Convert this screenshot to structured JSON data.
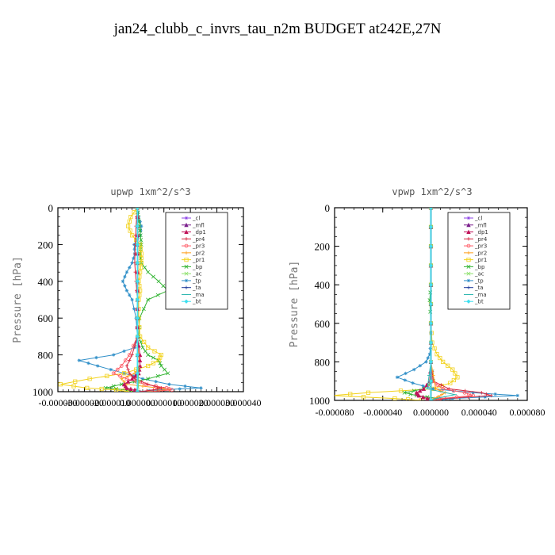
{
  "title": "jan24_clubb_c_invrs_tau_n2m  BUDGET at242E,27N",
  "legend_entries": [
    {
      "name": "_cl",
      "color": "#8e44e6"
    },
    {
      "name": "_mfl",
      "color": "#7a1e8c"
    },
    {
      "name": "_dp1",
      "color": "#c0145a"
    },
    {
      "name": "_pr4",
      "color": "#d4243c"
    },
    {
      "name": "_pr3",
      "color": "#ff5a64"
    },
    {
      "name": "_pr2",
      "color": "#ff9f1c"
    },
    {
      "name": "_pr1",
      "color": "#f2d21b"
    },
    {
      "name": "_bp",
      "color": "#2fb32f"
    },
    {
      "name": "_ac",
      "color": "#8ce06a"
    },
    {
      "name": "_tp",
      "color": "#2f8fc8"
    },
    {
      "name": "_ta",
      "color": "#1f3a9a"
    },
    {
      "name": "_ma",
      "color": "#2fb8b0"
    },
    {
      "name": "_bt",
      "color": "#3fe0f0"
    }
  ],
  "chart_data": [
    {
      "type": "line",
      "title": "upwp   1xm^2/s^3",
      "ylabel": "Pressure [hPa]",
      "xlim": [
        -3e-05,
        4e-05
      ],
      "ylim": [
        1000,
        0
      ],
      "yticks": [
        0,
        200,
        400,
        600,
        800,
        1000
      ],
      "ytick_labels": [
        "0",
        "200",
        "400",
        "600",
        "800",
        "1000"
      ],
      "xticks": [
        -3e-05,
        -2e-05,
        -1e-05,
        0,
        1e-05,
        2e-05,
        3e-05,
        4e-05
      ],
      "xtick_labels": [
        "-0.000030",
        "-0.000020",
        "-0.000010",
        "0.000000",
        "0.000010",
        "0.000020",
        "0.000030",
        "0.000040"
      ],
      "legend_position": "top-right",
      "series": [
        {
          "name": "_tp",
          "y": [
            0,
            50,
            100,
            150,
            200,
            250,
            300,
            350,
            400,
            450,
            500,
            600,
            700,
            760,
            800,
            830,
            860,
            900,
            930,
            960,
            980,
            990,
            1000
          ],
          "x": [
            0,
            5e-07,
            1.5e-06,
            1e-06,
            -1.2e-06,
            -1e-06,
            -2e-06,
            -4e-06,
            -5.5e-06,
            -4e-06,
            -2e-06,
            -5e-07,
            0,
            -1e-06,
            -9e-06,
            -2.2e-05,
            -1.5e-05,
            -5e-06,
            2e-06,
            1.2e-05,
            2.4e-05,
            8e-06,
            1e-06
          ]
        },
        {
          "name": "_bp",
          "y": [
            0,
            50,
            100,
            150,
            200,
            250,
            300,
            350,
            400,
            450,
            500,
            600,
            700,
            760,
            800,
            830,
            860,
            900,
            930,
            960,
            980,
            990,
            1000
          ],
          "x": [
            0,
            4e-07,
            8e-07,
            1.2e-06,
            1.5e-06,
            1e-06,
            1.5e-06,
            4e-06,
            8e-06,
            1.15e-05,
            4e-06,
            8e-07,
            5e-07,
            2e-06,
            4e-06,
            8e-06,
            9e-06,
            1.15e-05,
            4e-06,
            -6e-06,
            -1.2e-05,
            -4e-06,
            -1.5e-06
          ]
        },
        {
          "name": "_pr1",
          "y": [
            0,
            50,
            100,
            150,
            200,
            250,
            300,
            350,
            400,
            450,
            500,
            600,
            700,
            760,
            800,
            830,
            860,
            900,
            930,
            960,
            980,
            990,
            1000
          ],
          "x": [
            0,
            -2.5e-06,
            -3.5e-06,
            -2e-06,
            1e-06,
            1.5e-06,
            1.5e-06,
            1e-06,
            5e-07,
            1e-06,
            5e-07,
            5e-07,
            1e-06,
            4e-06,
            9e-06,
            8e-06,
            4e-06,
            -5e-06,
            -1.8e-05,
            -2.9e-05,
            -1.9e-05,
            -8e-06,
            -3e-06
          ]
        },
        {
          "name": "_pr2",
          "y": [
            0,
            100,
            200,
            300,
            400,
            500,
            600,
            700,
            800,
            860,
            900,
            930,
            960,
            980,
            990,
            1000
          ],
          "x": [
            0,
            0,
            0,
            0,
            0,
            0,
            0,
            0,
            5e-07,
            1e-06,
            -1e-06,
            -6e-06,
            -4e-06,
            8e-06,
            1.2e-05,
            4e-06
          ]
        },
        {
          "name": "_pr3",
          "y": [
            0,
            100,
            200,
            300,
            400,
            500,
            600,
            700,
            800,
            860,
            900,
            930,
            960,
            980,
            990,
            1000
          ],
          "x": [
            0,
            0,
            0,
            0,
            0,
            0,
            0,
            0,
            -3e-06,
            -6e-06,
            -9e-06,
            -4e-06,
            3e-06,
            1.1e-05,
            1.3e-05,
            5e-06
          ]
        },
        {
          "name": "_pr4",
          "y": [
            0,
            100,
            200,
            300,
            400,
            500,
            600,
            700,
            800,
            860,
            900,
            930,
            960,
            980,
            990,
            1000
          ],
          "x": [
            0,
            -5e-07,
            -8e-07,
            -1e-06,
            -5e-07,
            0,
            0,
            0,
            -2e-06,
            -4e-06,
            -3e-06,
            -1e-06,
            4e-06,
            9e-06,
            6e-06,
            1e-06
          ]
        },
        {
          "name": "_dp1",
          "y": [
            0,
            100,
            200,
            300,
            400,
            500,
            600,
            700,
            800,
            860,
            900,
            930,
            960,
            980,
            990,
            1000
          ],
          "x": [
            0,
            0,
            0,
            0,
            0,
            0,
            0,
            0,
            1e-06,
            1e-06,
            5e-07,
            -2e-06,
            -5e-06,
            -4e-06,
            -1e-06,
            0
          ]
        },
        {
          "name": "_cl",
          "y": [
            0,
            200,
            400,
            600,
            800,
            1000
          ],
          "x": [
            0,
            0,
            0,
            0,
            0,
            0
          ]
        },
        {
          "name": "_mfl",
          "y": [
            0,
            200,
            400,
            600,
            800,
            1000
          ],
          "x": [
            0,
            0,
            0,
            0,
            0,
            0
          ]
        },
        {
          "name": "_ac",
          "y": [
            0,
            200,
            400,
            600,
            800,
            950,
            1000
          ],
          "x": [
            0,
            0,
            0,
            0,
            0,
            5e-07,
            0
          ]
        },
        {
          "name": "_ta",
          "y": [
            0,
            200,
            400,
            600,
            800,
            1000
          ],
          "x": [
            0,
            0,
            0,
            0,
            0,
            0
          ]
        },
        {
          "name": "_ma",
          "y": [
            0,
            200,
            400,
            600,
            800,
            1000
          ],
          "x": [
            0,
            0,
            0,
            0,
            0,
            0
          ]
        },
        {
          "name": "_bt",
          "y": [
            0,
            200,
            400,
            600,
            800,
            1000
          ],
          "x": [
            0,
            0,
            0,
            0,
            0,
            0
          ]
        }
      ]
    },
    {
      "type": "line",
      "title": "vpwp   1xm^2/s^3",
      "ylabel": "Pressure [hPa]",
      "xlim": [
        -8e-05,
        8e-05
      ],
      "ylim": [
        1000,
        0
      ],
      "yticks": [
        0,
        200,
        400,
        600,
        800,
        1000
      ],
      "ytick_labels": [
        "0",
        "200",
        "400",
        "600",
        "800",
        "1000"
      ],
      "xticks": [
        -8e-05,
        -4e-05,
        0,
        4e-05,
        8e-05
      ],
      "xtick_labels": [
        "-0.000080",
        "-0.000040",
        "0.000000",
        "0.000040",
        "0.000080"
      ],
      "legend_position": "top-right",
      "series": [
        {
          "name": "_pr1",
          "y": [
            0,
            200,
            400,
            600,
            700,
            760,
            800,
            840,
            880,
            910,
            940,
            960,
            975,
            990,
            1000
          ],
          "x": [
            0,
            0,
            0,
            0,
            1e-06,
            5e-06,
            1e-05,
            1.8e-05,
            2.2e-05,
            1.6e-05,
            2e-06,
            -5.2e-05,
            -8.2e-05,
            -3e-05,
            -8e-06
          ]
        },
        {
          "name": "_tp",
          "y": [
            0,
            200,
            400,
            600,
            700,
            760,
            800,
            840,
            880,
            910,
            940,
            960,
            975,
            990,
            1000
          ],
          "x": [
            0,
            0,
            0,
            0,
            0,
            -1e-06,
            -4e-06,
            -1.4e-05,
            -2.8e-05,
            -1.5e-05,
            2e-06,
            3.5e-05,
            7.2e-05,
            1.8e-05,
            4e-06
          ]
        },
        {
          "name": "_bp",
          "y": [
            0,
            200,
            400,
            480,
            600,
            800,
            900,
            940,
            960,
            975,
            990,
            1000
          ],
          "x": [
            0,
            0,
            0,
            -1e-06,
            0,
            0,
            2e-06,
            -6e-06,
            -2.2e-05,
            -1.2e-05,
            6e-06,
            2e-06
          ]
        },
        {
          "name": "_pr4",
          "y": [
            0,
            200,
            400,
            600,
            800,
            900,
            940,
            960,
            975,
            990,
            1000
          ],
          "x": [
            0,
            0,
            0,
            0,
            0,
            2e-06,
            1.5e-05,
            4.2e-05,
            5e-05,
            1.2e-05,
            2e-06
          ]
        },
        {
          "name": "_pr3",
          "y": [
            0,
            200,
            400,
            600,
            800,
            900,
            940,
            960,
            975,
            990,
            1000
          ],
          "x": [
            0,
            0,
            0,
            0,
            0,
            1e-06,
            1e-05,
            2.8e-05,
            3.5e-05,
            8e-06,
            1e-06
          ]
        },
        {
          "name": "_dp1",
          "y": [
            0,
            200,
            400,
            600,
            800,
            900,
            940,
            960,
            975,
            990,
            1000
          ],
          "x": [
            0,
            0,
            0,
            0,
            0,
            -1e-06,
            -6e-06,
            -1.2e-05,
            -1e-05,
            -3e-06,
            0
          ]
        },
        {
          "name": "_pr2",
          "y": [
            0,
            200,
            400,
            600,
            800,
            940,
            960,
            980,
            1000
          ],
          "x": [
            0,
            0,
            0,
            0,
            0,
            4e-06,
            1.2e-05,
            6e-06,
            0
          ]
        },
        {
          "name": "_ma",
          "y": [
            0,
            200,
            400,
            600,
            800,
            940,
            970,
            990,
            1000
          ],
          "x": [
            0,
            0,
            0,
            0,
            0,
            -3e-06,
            2e-05,
            4e-06,
            0
          ]
        },
        {
          "name": "_cl",
          "y": [
            0,
            200,
            400,
            600,
            800,
            1000
          ],
          "x": [
            0,
            0,
            0,
            0,
            0,
            0
          ]
        },
        {
          "name": "_mfl",
          "y": [
            0,
            200,
            400,
            600,
            800,
            1000
          ],
          "x": [
            0,
            0,
            0,
            0,
            0,
            0
          ]
        },
        {
          "name": "_ac",
          "y": [
            0,
            200,
            400,
            600,
            800,
            1000
          ],
          "x": [
            0,
            0,
            0,
            0,
            0,
            0
          ]
        },
        {
          "name": "_ta",
          "y": [
            0,
            200,
            400,
            600,
            800,
            1000
          ],
          "x": [
            0,
            0,
            0,
            0,
            0,
            0
          ]
        },
        {
          "name": "_bt",
          "y": [
            0,
            200,
            400,
            600,
            800,
            1000
          ],
          "x": [
            0,
            0,
            0,
            0,
            0,
            0
          ]
        }
      ]
    }
  ]
}
